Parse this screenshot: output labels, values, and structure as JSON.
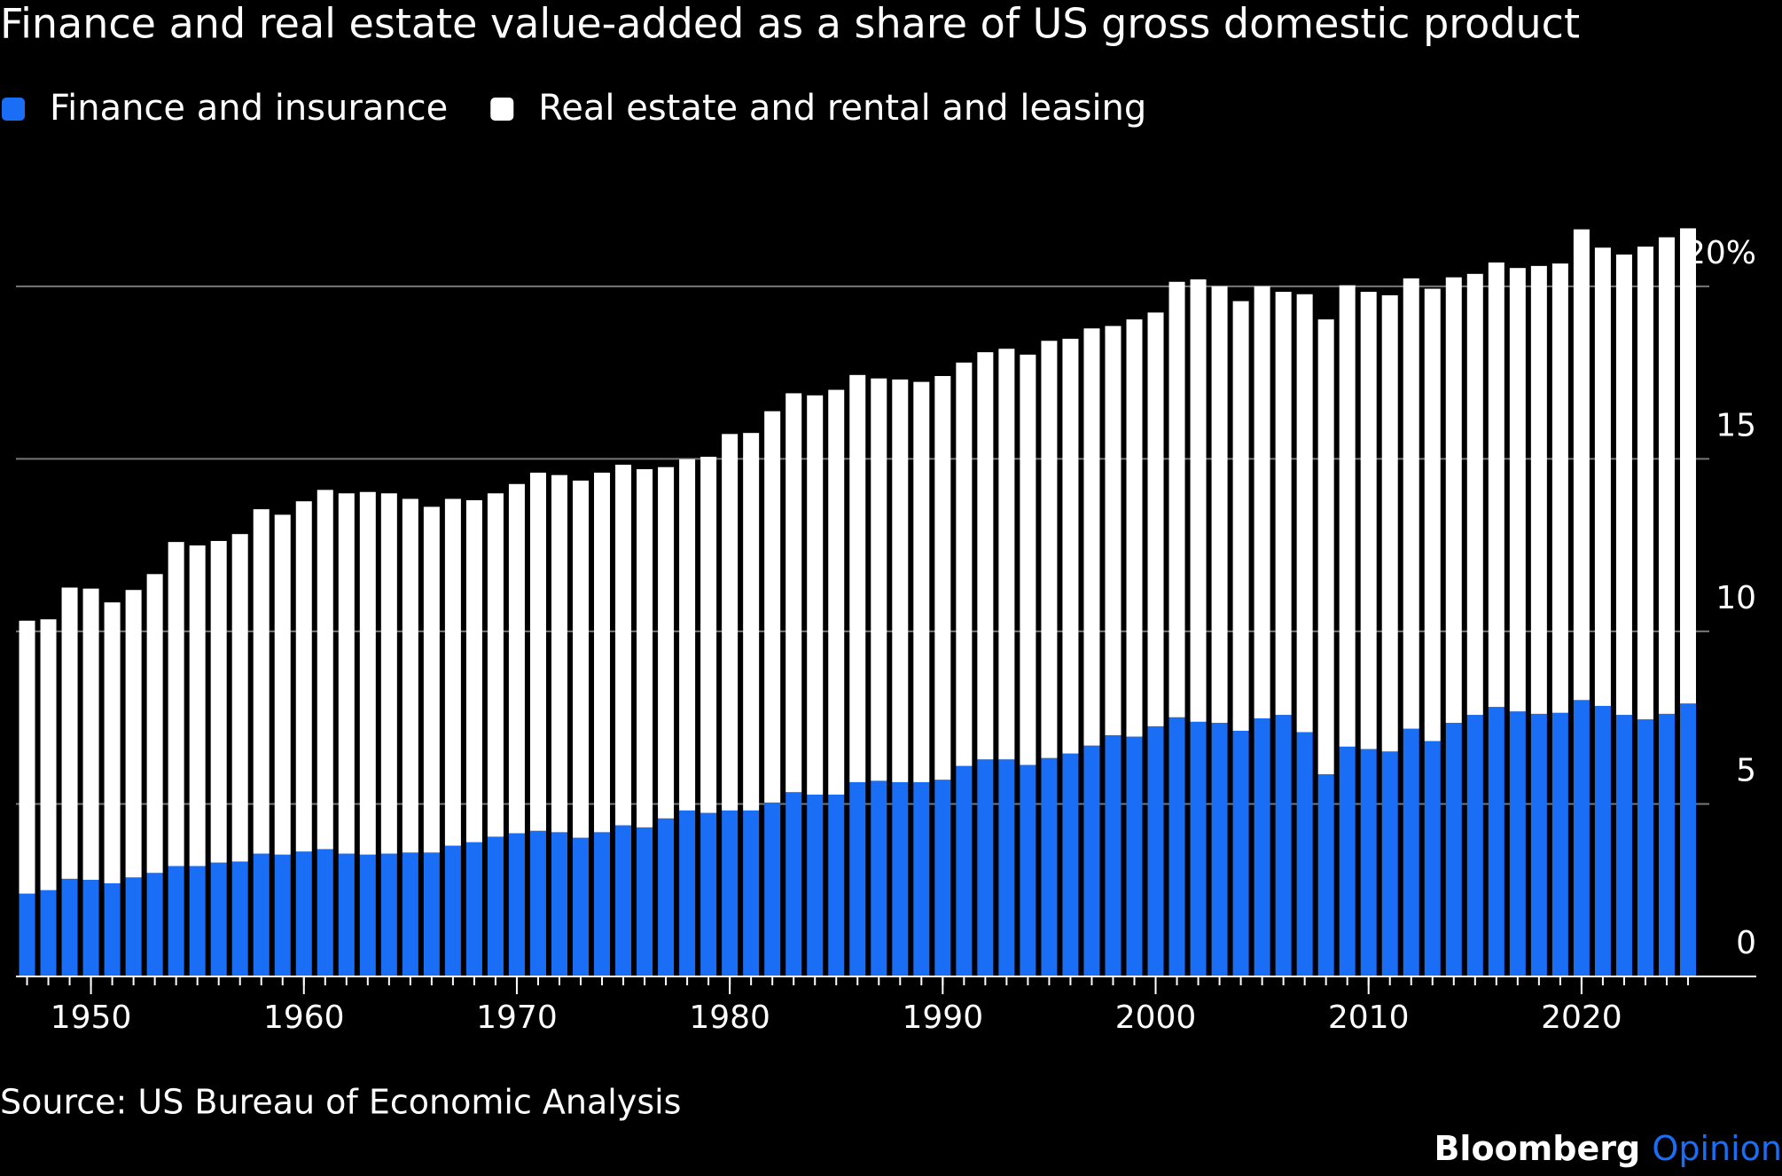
{
  "chart_data": {
    "type": "stacked_bar",
    "title": "Finance and real estate value-added as a share of US gross domestic product",
    "source": "Source: US Bureau of Economic Analysis",
    "brand": "Bloomberg",
    "brand_sub": "Opinion",
    "x": [
      1947,
      1948,
      1949,
      1950,
      1951,
      1952,
      1953,
      1954,
      1955,
      1956,
      1957,
      1958,
      1959,
      1960,
      1961,
      1962,
      1963,
      1964,
      1965,
      1966,
      1967,
      1968,
      1969,
      1970,
      1971,
      1972,
      1973,
      1974,
      1975,
      1976,
      1977,
      1978,
      1979,
      1980,
      1981,
      1982,
      1983,
      1984,
      1985,
      1986,
      1987,
      1988,
      1989,
      1990,
      1991,
      1992,
      1993,
      1994,
      1995,
      1996,
      1997,
      1998,
      1999,
      2000,
      2001,
      2002,
      2003,
      2004,
      2005,
      2006,
      2007,
      2008,
      2009,
      2010,
      2011,
      2012,
      2013,
      2014,
      2015,
      2016,
      2017,
      2018,
      2019,
      2020,
      2021,
      2022,
      2023,
      2024,
      2025
    ],
    "series": [
      {
        "name": "Finance and insurance",
        "color": "#1a6ef5",
        "values": [
          2.4,
          2.5,
          2.83,
          2.8,
          2.7,
          2.87,
          3.0,
          3.2,
          3.2,
          3.3,
          3.33,
          3.56,
          3.53,
          3.62,
          3.69,
          3.56,
          3.53,
          3.56,
          3.59,
          3.59,
          3.79,
          3.89,
          4.05,
          4.15,
          4.22,
          4.18,
          4.02,
          4.18,
          4.38,
          4.32,
          4.58,
          4.81,
          4.74,
          4.81,
          4.81,
          5.04,
          5.34,
          5.27,
          5.27,
          5.63,
          5.67,
          5.63,
          5.63,
          5.7,
          6.1,
          6.29,
          6.29,
          6.13,
          6.33,
          6.46,
          6.69,
          6.99,
          6.95,
          7.25,
          7.51,
          7.38,
          7.35,
          7.12,
          7.48,
          7.58,
          7.08,
          5.86,
          6.66,
          6.59,
          6.52,
          7.18,
          6.82,
          7.35,
          7.58,
          7.81,
          7.68,
          7.61,
          7.64,
          8.01,
          7.84,
          7.58,
          7.45,
          7.61,
          7.91
        ]
      },
      {
        "name": "Real estate and rental and leasing",
        "color": "#ffffff",
        "values": [
          7.91,
          7.85,
          8.44,
          8.44,
          8.14,
          8.33,
          8.66,
          9.39,
          9.29,
          9.32,
          9.49,
          9.98,
          9.85,
          10.15,
          10.41,
          10.44,
          10.51,
          10.44,
          10.25,
          10.02,
          10.05,
          9.91,
          9.95,
          10.12,
          10.38,
          10.35,
          10.35,
          10.42,
          10.45,
          10.38,
          10.18,
          10.18,
          10.32,
          10.91,
          10.94,
          11.34,
          11.56,
          11.57,
          11.73,
          11.8,
          11.66,
          11.67,
          11.6,
          11.7,
          11.69,
          11.8,
          11.9,
          11.89,
          12.09,
          12.02,
          12.09,
          11.86,
          12.09,
          11.99,
          12.62,
          12.82,
          12.65,
          12.45,
          12.52,
          12.26,
          12.69,
          13.18,
          13.37,
          13.25,
          13.22,
          13.05,
          13.11,
          12.91,
          12.78,
          12.88,
          12.85,
          12.98,
          13.02,
          13.64,
          13.28,
          13.34,
          13.7,
          13.81,
          13.77
        ]
      }
    ],
    "xlim": [
      1946,
      2026
    ],
    "xticks": [
      1950,
      1960,
      1970,
      1980,
      1990,
      2000,
      2010,
      2020
    ],
    "ylim": [
      0,
      22
    ],
    "yticks": [
      0,
      5,
      10,
      15,
      {
        "value": 20,
        "label": "20%"
      }
    ],
    "grid": true,
    "y_axis_side": "right"
  }
}
